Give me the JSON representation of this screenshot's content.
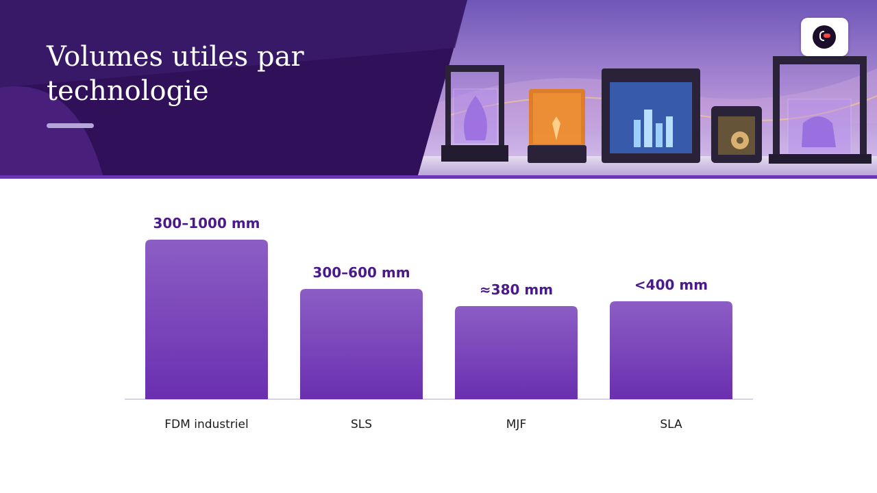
{
  "slide": {
    "title": "Volumes utiles par technologie"
  },
  "icons": {
    "logo": "brand-logo-icon",
    "hero": "3d-printers-illustration"
  },
  "colors": {
    "accent": "#6b34b4",
    "bar_top": "#8c5ec4",
    "bar_bottom": "#6a2fb0",
    "value_label": "#4a1a8a",
    "header_dark": "#2e0f55"
  },
  "chart_data": {
    "type": "bar",
    "categories": [
      "FDM industriel",
      "SLS",
      "MJF",
      "SLA"
    ],
    "value_labels": [
      "300–1000 mm",
      "300–600 mm",
      "≈380 mm",
      "<400 mm"
    ],
    "values": [
      1000,
      600,
      380,
      400
    ],
    "ylim": [
      0,
      1000
    ],
    "grid": false,
    "legend": "none"
  }
}
